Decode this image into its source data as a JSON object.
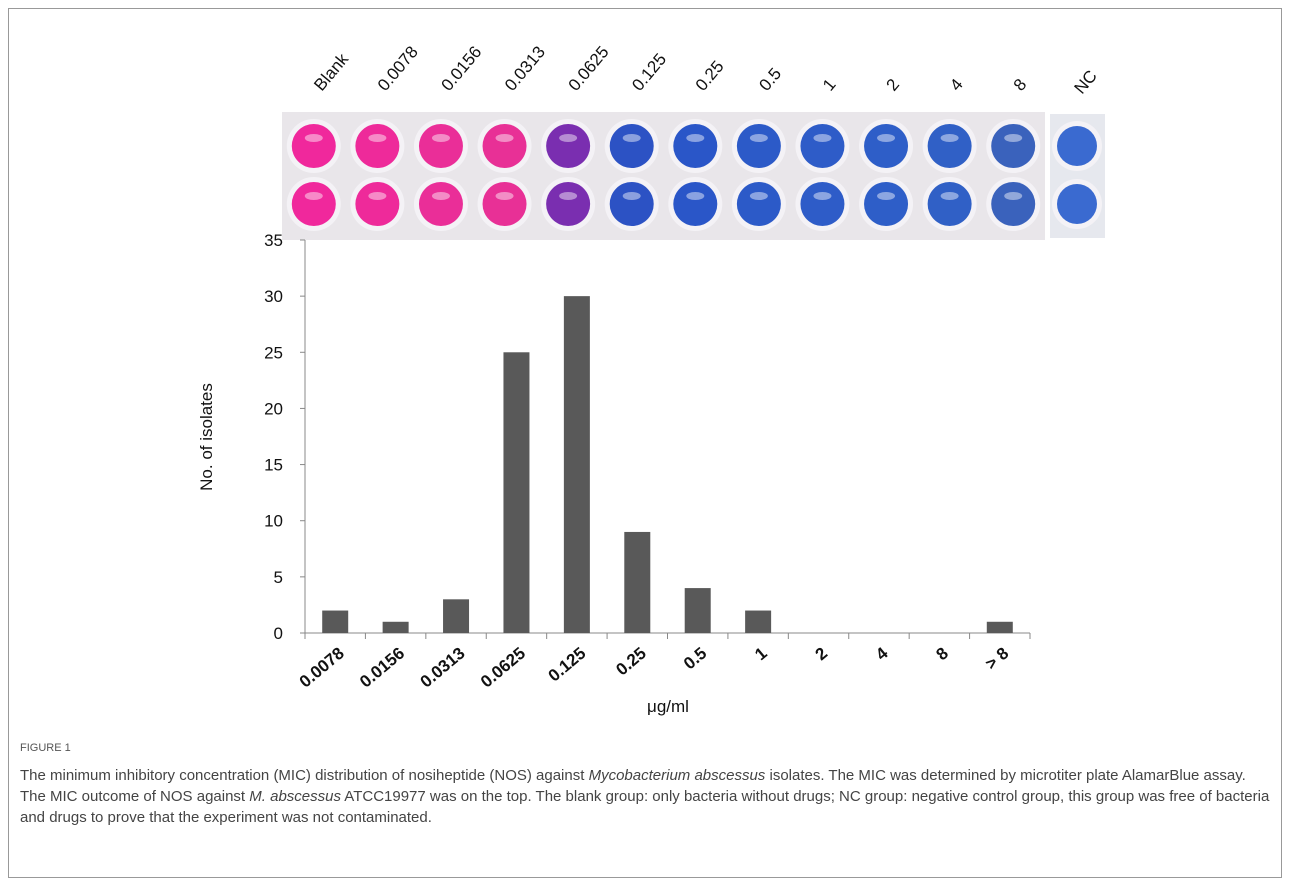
{
  "plate": {
    "labels": [
      "Blank",
      "0.0078",
      "0.0156",
      "0.0313",
      "0.0625",
      "0.125",
      "0.25",
      "0.5",
      "1",
      "2",
      "4",
      "8"
    ],
    "control_label": "NC"
  },
  "chart_data": {
    "type": "bar",
    "y_label": "No. of isolates",
    "x_label": "μg/ml",
    "categories": [
      "0.0078",
      "0.0156",
      "0.0313",
      "0.0625",
      "0.125",
      "0.25",
      "0.5",
      "1",
      "2",
      "4",
      "8",
      "> 8"
    ],
    "values": [
      2,
      1,
      3,
      25,
      30,
      9,
      4,
      2,
      0,
      0,
      0,
      1
    ],
    "color": "#595959",
    "ylim": [
      0,
      35
    ],
    "yticks": [
      0,
      5,
      10,
      15,
      20,
      25,
      30,
      35
    ],
    "grid": false
  },
  "caption": {
    "label": "FIGURE 1",
    "parts": [
      "The minimum inhibitory concentration (MIC) distribution of nosiheptide (NOS) against ",
      "Mycobacterium abscessus",
      " isolates. The MIC was determined by microtiter plate AlamarBlue assay. The MIC outcome of NOS against ",
      "M. abscessus",
      " ATCC19977 was on the top. The blank group: only bacteria without drugs; NC group: negative control group, this group was free of bacteria and drugs to prove that the experiment was not contaminated."
    ]
  }
}
